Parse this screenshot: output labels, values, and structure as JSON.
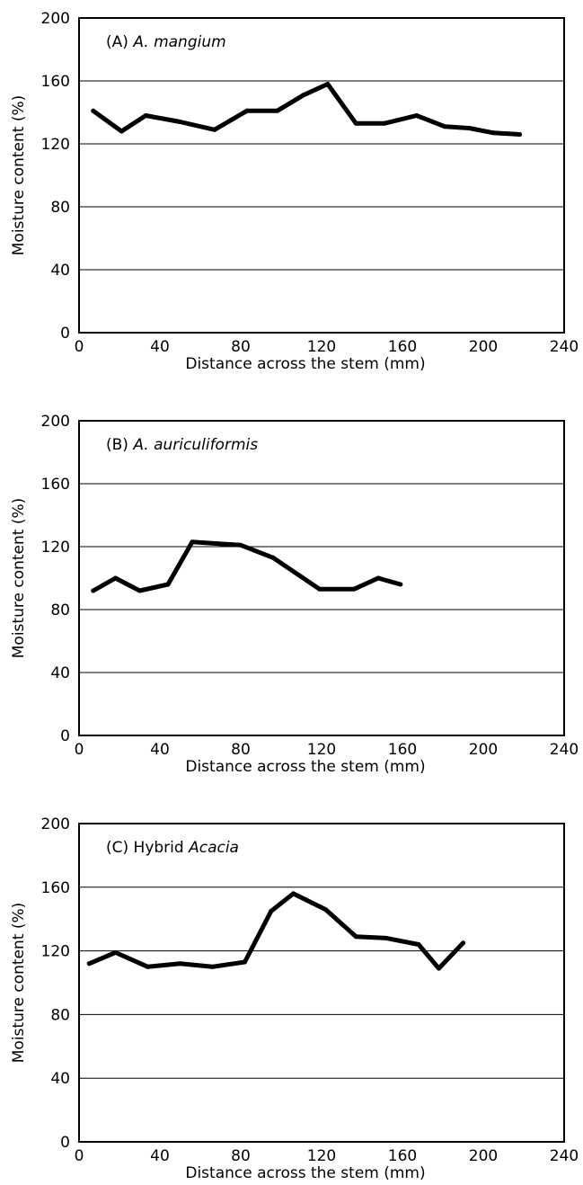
{
  "chart_data": [
    {
      "type": "line",
      "panel_prefix": "(A)",
      "panel_name_plain": "",
      "panel_name_italic": "A. mangium",
      "xlabel": "Distance across the stem (mm)",
      "ylabel": "Moisture content (%)",
      "xlim": [
        0,
        240
      ],
      "ylim": [
        0,
        200
      ],
      "xticks": [
        "0",
        "40",
        "80",
        "120",
        "160",
        "200",
        "240"
      ],
      "yticks": [
        "0",
        "40",
        "80",
        "120",
        "160",
        "200"
      ],
      "grid": "horizontal",
      "x": [
        7,
        21,
        33,
        50,
        67,
        83,
        98,
        111,
        123,
        137,
        151,
        167,
        181,
        193,
        205,
        218
      ],
      "y": [
        141,
        128,
        138,
        134,
        129,
        141,
        141,
        151,
        158,
        133,
        133,
        138,
        131,
        130,
        127,
        126
      ]
    },
    {
      "type": "line",
      "panel_prefix": "(B)",
      "panel_name_plain": "",
      "panel_name_italic": "A. auriculiformis",
      "xlabel": "Distance across the stem (mm)",
      "ylabel": "Moisture content (%)",
      "xlim": [
        0,
        240
      ],
      "ylim": [
        0,
        200
      ],
      "xticks": [
        "0",
        "40",
        "80",
        "120",
        "160",
        "200",
        "240"
      ],
      "yticks": [
        "0",
        "40",
        "80",
        "120",
        "160",
        "200"
      ],
      "grid": "horizontal",
      "x": [
        7,
        18,
        30,
        44,
        56,
        80,
        96,
        119,
        136,
        148,
        159
      ],
      "y": [
        92,
        100,
        92,
        96,
        123,
        121,
        113,
        93,
        93,
        100,
        96
      ]
    },
    {
      "type": "line",
      "panel_prefix": "(C)",
      "panel_name_plain": "Hybrid",
      "panel_name_italic": "Acacia",
      "xlabel": "Distance across the stem (mm)",
      "ylabel": "Moisture content (%)",
      "xlim": [
        0,
        240
      ],
      "ylim": [
        0,
        200
      ],
      "xticks": [
        "0",
        "40",
        "80",
        "120",
        "160",
        "200",
        "240"
      ],
      "yticks": [
        "0",
        "40",
        "80",
        "120",
        "160",
        "200"
      ],
      "grid": "horizontal",
      "x": [
        5,
        18,
        34,
        50,
        66,
        82,
        95,
        106,
        122,
        137,
        152,
        168,
        178,
        190
      ],
      "y": [
        112,
        119,
        110,
        112,
        110,
        113,
        145,
        156,
        146,
        129,
        128,
        124,
        109,
        125
      ]
    }
  ]
}
